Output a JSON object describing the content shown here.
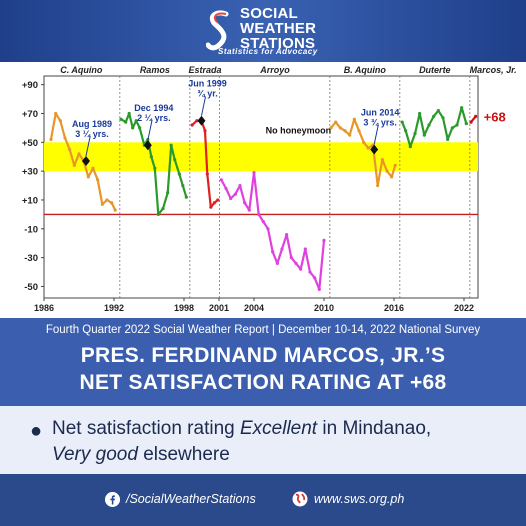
{
  "header": {
    "org_line1": "SOCIAL",
    "org_line2": "WEATHER",
    "org_line3": "STATIONS",
    "tagline": "Statistics for Advocacy"
  },
  "chart_data": {
    "type": "line",
    "ylim": [
      -58,
      96
    ],
    "xlim": [
      1986,
      2023.2
    ],
    "y_ticks": [
      "+90",
      "+70",
      "+50",
      "+30",
      "+10",
      "-10",
      "-30",
      "-50"
    ],
    "y_tick_values": [
      90,
      70,
      50,
      30,
      10,
      -10,
      -30,
      -50
    ],
    "x_ticks": [
      "1986",
      "1992",
      "1998",
      "2001",
      "2004",
      "2010",
      "2016",
      "2022"
    ],
    "x_tick_values": [
      1986,
      1992,
      1998,
      2001,
      2004,
      2010,
      2016,
      2022
    ],
    "honeymoon_band": [
      30,
      50
    ],
    "zero_line": 0,
    "term_dividers": [
      1992.5,
      1998.5,
      2001.05,
      2010.5,
      2016.5,
      2022.5
    ],
    "presidents": [
      {
        "name": "C. Aquino",
        "x": 1989.2
      },
      {
        "name": "Ramos",
        "x": 1995.5
      },
      {
        "name": "Estrada",
        "x": 1999.8
      },
      {
        "name": "Arroyo",
        "x": 2005.8
      },
      {
        "name": "B. Aquino",
        "x": 2013.5
      },
      {
        "name": "Duterte",
        "x": 2019.5
      },
      {
        "name": "Marcos, Jr.",
        "x": 2024.5
      }
    ],
    "annotations": [
      {
        "line1": "Aug 1989",
        "line2": "3 ¼ yrs.",
        "x": 1989.6,
        "y": 37
      },
      {
        "line1": "Dec 1994",
        "line2": "2 ¼ yrs.",
        "x": 1994.9,
        "y": 48
      },
      {
        "line1": "Jun 1999",
        "line2": "¾ yr.",
        "x": 1999.5,
        "y": 65
      },
      {
        "line1": "Jun 2014",
        "line2": "3 ¾ yrs.",
        "x": 2014.3,
        "y": 45
      }
    ],
    "band_label": "No honeymoon",
    "latest_label": "+68",
    "series": [
      {
        "color": "#e8962a",
        "values": [
          [
            1986.6,
            52
          ],
          [
            1987.0,
            70
          ],
          [
            1987.4,
            65
          ],
          [
            1987.8,
            53
          ],
          [
            1988.2,
            45
          ],
          [
            1988.6,
            34
          ],
          [
            1989.0,
            42
          ],
          [
            1989.4,
            37
          ],
          [
            1989.8,
            26
          ],
          [
            1990.2,
            32
          ],
          [
            1990.6,
            24
          ],
          [
            1991.0,
            7
          ],
          [
            1991.4,
            10
          ],
          [
            1991.8,
            8
          ],
          [
            1992.1,
            3
          ]
        ]
      },
      {
        "color": "#2a9a2a",
        "values": [
          [
            1992.6,
            66
          ],
          [
            1993.0,
            64
          ],
          [
            1993.3,
            70
          ],
          [
            1993.6,
            60
          ],
          [
            1993.9,
            65
          ],
          [
            1994.2,
            60
          ],
          [
            1994.6,
            48
          ],
          [
            1994.9,
            52
          ],
          [
            1995.2,
            40
          ],
          [
            1995.5,
            32
          ],
          [
            1995.8,
            0
          ],
          [
            1996.2,
            4
          ],
          [
            1996.6,
            15
          ],
          [
            1996.9,
            48
          ],
          [
            1997.2,
            38
          ],
          [
            1997.6,
            28
          ],
          [
            1997.9,
            20
          ],
          [
            1998.2,
            12
          ]
        ]
      },
      {
        "color": "#e02020",
        "values": [
          [
            1998.7,
            62
          ],
          [
            1999.1,
            65
          ],
          [
            1999.5,
            65
          ],
          [
            1999.8,
            58
          ],
          [
            2000.0,
            28
          ],
          [
            2000.3,
            5
          ],
          [
            2000.6,
            8
          ],
          [
            2000.9,
            10
          ]
        ]
      },
      {
        "color": "#e040e0",
        "values": [
          [
            2001.2,
            24
          ],
          [
            2001.6,
            18
          ],
          [
            2002.0,
            11
          ],
          [
            2002.4,
            14
          ],
          [
            2002.8,
            20
          ],
          [
            2003.2,
            8
          ],
          [
            2003.6,
            3
          ],
          [
            2004.0,
            29
          ],
          [
            2004.4,
            0
          ],
          [
            2004.8,
            -5
          ],
          [
            2005.2,
            -10
          ],
          [
            2005.6,
            -26
          ],
          [
            2006.0,
            -34
          ],
          [
            2006.4,
            -24
          ],
          [
            2006.8,
            -14
          ],
          [
            2007.2,
            -30
          ],
          [
            2007.6,
            -34
          ],
          [
            2008.0,
            -38
          ],
          [
            2008.4,
            -24
          ],
          [
            2008.8,
            -40
          ],
          [
            2009.2,
            -44
          ],
          [
            2009.6,
            -52
          ],
          [
            2010.0,
            -18
          ]
        ]
      },
      {
        "color": "#e8962a",
        "values": [
          [
            2010.6,
            60
          ],
          [
            2011.0,
            64
          ],
          [
            2011.4,
            60
          ],
          [
            2011.8,
            58
          ],
          [
            2012.2,
            55
          ],
          [
            2012.6,
            66
          ],
          [
            2013.0,
            58
          ],
          [
            2013.4,
            50
          ],
          [
            2013.8,
            46
          ],
          [
            2014.2,
            48
          ],
          [
            2014.6,
            20
          ],
          [
            2015.0,
            38
          ],
          [
            2015.4,
            30
          ],
          [
            2015.8,
            26
          ],
          [
            2016.1,
            34
          ]
        ]
      },
      {
        "color": "#2a9a2a",
        "values": [
          [
            2016.7,
            64
          ],
          [
            2017.0,
            58
          ],
          [
            2017.4,
            47
          ],
          [
            2017.8,
            56
          ],
          [
            2018.2,
            70
          ],
          [
            2018.6,
            55
          ],
          [
            2019.0,
            62
          ],
          [
            2019.4,
            68
          ],
          [
            2019.8,
            72
          ],
          [
            2020.2,
            67
          ],
          [
            2020.6,
            52
          ],
          [
            2021.0,
            60
          ],
          [
            2021.4,
            62
          ],
          [
            2021.8,
            74
          ],
          [
            2022.2,
            63
          ]
        ]
      },
      {
        "color": "#cc1111",
        "values": [
          [
            2022.6,
            64
          ],
          [
            2023.0,
            68
          ]
        ]
      }
    ]
  },
  "survey_line": "Fourth Quarter 2022 Social Weather Report  |  December 10-14, 2022 National Survey",
  "headline": {
    "line1": "PRES. FERDINAND MARCOS, JR.’S",
    "line2": "NET SATISFACTION RATING AT +68"
  },
  "bullet": {
    "part1": "Net satisfaction rating ",
    "em1": "Excellent",
    "part2": " in Mindanao,",
    "em2": "Very good",
    "part3": " elsewhere"
  },
  "footer": {
    "facebook": "/SocialWeatherStations",
    "website": "www.sws.org.ph"
  }
}
